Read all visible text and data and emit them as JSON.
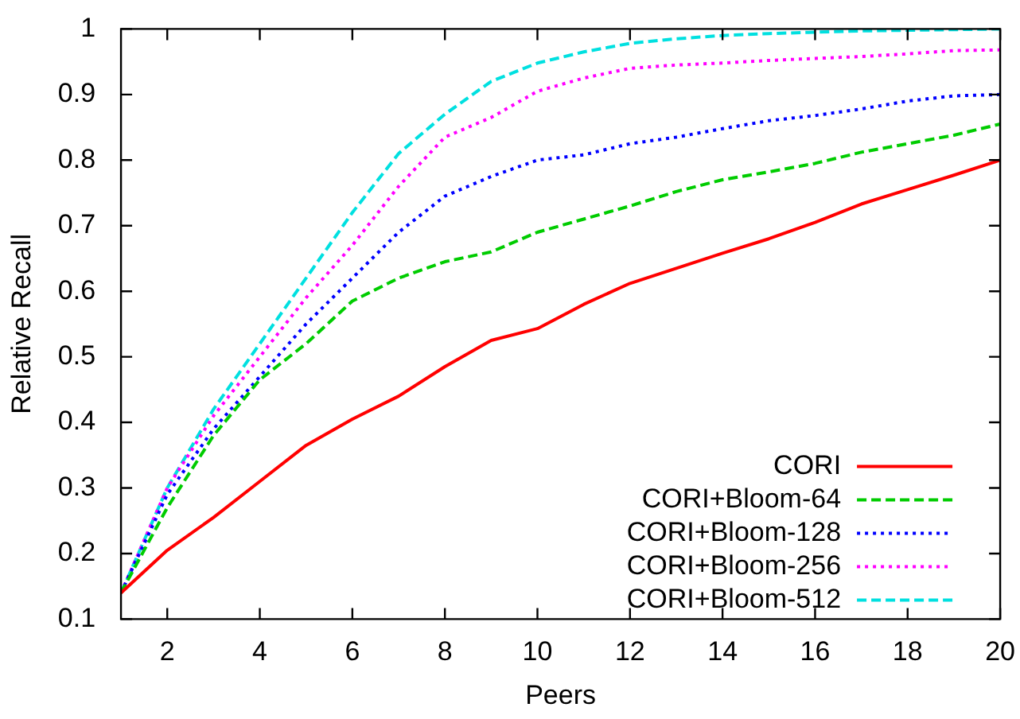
{
  "chart_data": {
    "type": "line",
    "xlabel": "Peers",
    "ylabel": "Relative Recall",
    "x": [
      1,
      2,
      3,
      4,
      5,
      6,
      7,
      8,
      9,
      10,
      11,
      12,
      13,
      14,
      15,
      16,
      17,
      18,
      19,
      20
    ],
    "xlim": [
      1,
      20
    ],
    "xticks": [
      2,
      4,
      6,
      8,
      10,
      12,
      14,
      16,
      18,
      20
    ],
    "ylim": [
      0.1,
      1
    ],
    "yticks": [
      0.1,
      0.2,
      0.3,
      0.4,
      0.5,
      0.6,
      0.7,
      0.8,
      0.9,
      1
    ],
    "grid": false,
    "legend": "bottom right",
    "marker": "none",
    "series": [
      {
        "name": "CORI",
        "color": "#ff0000",
        "line_style": "solid",
        "values": [
          0.14,
          0.205,
          0.255,
          0.31,
          0.365,
          0.405,
          0.44,
          0.485,
          0.525,
          0.543,
          0.58,
          0.612,
          0.635,
          0.658,
          0.68,
          0.705,
          0.733,
          0.755,
          0.777,
          0.8
        ]
      },
      {
        "name": "CORI+Bloom-64",
        "color": "#00cc00",
        "line_style": "dashed",
        "values": [
          0.14,
          0.27,
          0.38,
          0.465,
          0.52,
          0.585,
          0.62,
          0.645,
          0.66,
          0.69,
          0.71,
          0.73,
          0.752,
          0.77,
          0.782,
          0.795,
          0.812,
          0.825,
          0.838,
          0.855
        ]
      },
      {
        "name": "CORI+Bloom-128",
        "color": "#0000ff",
        "line_style": "dotted",
        "values": [
          0.14,
          0.29,
          0.39,
          0.47,
          0.55,
          0.62,
          0.69,
          0.745,
          0.775,
          0.8,
          0.808,
          0.825,
          0.835,
          0.848,
          0.86,
          0.868,
          0.878,
          0.89,
          0.898,
          0.9
        ]
      },
      {
        "name": "CORI+Bloom-256",
        "color": "#ff00ff",
        "line_style": "dotted",
        "values": [
          0.14,
          0.3,
          0.41,
          0.5,
          0.59,
          0.67,
          0.76,
          0.835,
          0.865,
          0.905,
          0.925,
          0.94,
          0.945,
          0.948,
          0.952,
          0.955,
          0.958,
          0.962,
          0.967,
          0.968
        ]
      },
      {
        "name": "CORI+Bloom-512",
        "color": "#00e0e0",
        "line_style": "dashed",
        "values": [
          0.14,
          0.3,
          0.42,
          0.52,
          0.62,
          0.72,
          0.81,
          0.87,
          0.92,
          0.948,
          0.965,
          0.978,
          0.985,
          0.99,
          0.993,
          0.995,
          0.997,
          0.998,
          0.999,
          1.0
        ]
      }
    ]
  }
}
